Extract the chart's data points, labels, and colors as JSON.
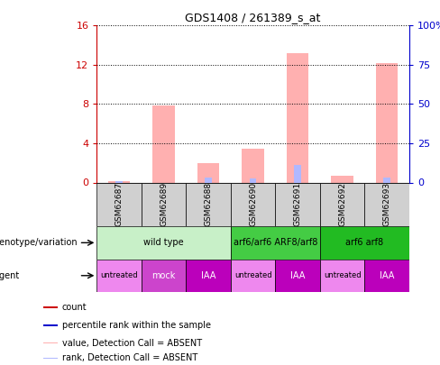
{
  "title": "GDS1408 / 261389_s_at",
  "samples": [
    "GSM62687",
    "GSM62689",
    "GSM62688",
    "GSM62690",
    "GSM62691",
    "GSM62692",
    "GSM62693"
  ],
  "pink_bars": [
    0.15,
    7.9,
    2.0,
    3.4,
    13.2,
    0.7,
    12.2
  ],
  "blue_bars": [
    0.18,
    0.0,
    0.5,
    0.45,
    1.8,
    0.0,
    0.55
  ],
  "ylim_left": [
    0,
    16
  ],
  "ylim_right": [
    0,
    100
  ],
  "yticks_left": [
    0,
    4,
    8,
    12,
    16
  ],
  "ytick_labels_left": [
    "0",
    "4",
    "8",
    "12",
    "16"
  ],
  "yticks_right": [
    0,
    25,
    50,
    75,
    100
  ],
  "ytick_labels_right": [
    "0",
    "25",
    "50",
    "75",
    "100%"
  ],
  "genotype_groups": [
    {
      "label": "wild type",
      "start": 0,
      "end": 3,
      "color": "#c8f0c8"
    },
    {
      "label": "arf6/arf6 ARF8/arf8",
      "start": 3,
      "end": 5,
      "color": "#44cc44"
    },
    {
      "label": "arf6 arf8",
      "start": 5,
      "end": 7,
      "color": "#22bb22"
    }
  ],
  "agent_groups": [
    {
      "label": "untreated",
      "start": 0,
      "end": 1,
      "color": "#ee88ee",
      "text_color": "#000000"
    },
    {
      "label": "mock",
      "start": 1,
      "end": 2,
      "color": "#cc44cc",
      "text_color": "#ffffff"
    },
    {
      "label": "IAA",
      "start": 2,
      "end": 3,
      "color": "#bb00bb",
      "text_color": "#ffffff"
    },
    {
      "label": "untreated",
      "start": 3,
      "end": 4,
      "color": "#ee88ee",
      "text_color": "#000000"
    },
    {
      "label": "IAA",
      "start": 4,
      "end": 5,
      "color": "#bb00bb",
      "text_color": "#ffffff"
    },
    {
      "label": "untreated",
      "start": 5,
      "end": 6,
      "color": "#ee88ee",
      "text_color": "#000000"
    },
    {
      "label": "IAA",
      "start": 6,
      "end": 7,
      "color": "#bb00bb",
      "text_color": "#ffffff"
    }
  ],
  "legend_items": [
    {
      "label": "count",
      "color": "#cc0000"
    },
    {
      "label": "percentile rank within the sample",
      "color": "#0000cc"
    },
    {
      "label": "value, Detection Call = ABSENT",
      "color": "#ffb0b0"
    },
    {
      "label": "rank, Detection Call = ABSENT",
      "color": "#b0b8ff"
    }
  ],
  "pink_color": "#ffb0b0",
  "blue_color": "#b0b8ff",
  "left_tick_color": "#cc0000",
  "right_tick_color": "#0000cc",
  "sample_box_color": "#d0d0d0",
  "bar_width": 0.25
}
